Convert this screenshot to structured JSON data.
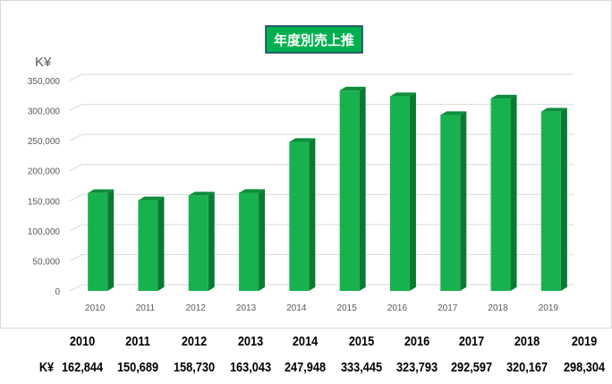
{
  "chart_data": {
    "type": "bar",
    "title": "年度別売上推",
    "ylabel": "K¥",
    "xlabel": "",
    "categories": [
      "2010",
      "2011",
      "2012",
      "2013",
      "2014",
      "2015",
      "2016",
      "2017",
      "2018",
      "2019"
    ],
    "values": [
      162844,
      150689,
      158730,
      163043,
      247948,
      333445,
      323793,
      292597,
      320167,
      298304
    ],
    "ylim": [
      0,
      350000
    ],
    "yticks": [
      0,
      50000,
      100000,
      150000,
      200000,
      250000,
      300000,
      350000
    ],
    "ytick_labels": [
      "0",
      "50,000",
      "100,000",
      "150,000",
      "200,000",
      "250,000",
      "300,000",
      "350,000"
    ],
    "grid": true,
    "legend": "none",
    "bar_style": "3d",
    "colors": {
      "bar_front": "#17b24e",
      "bar_side": "#0a7a32",
      "bar_top": "#0e8e3c",
      "title_bg": "#00b050",
      "title_border": "#1f3864",
      "title_text": "#ffffff",
      "grid": "#d9d9d9",
      "axis_text": "#595959"
    }
  },
  "table": {
    "row_label": "K¥",
    "years": [
      "2010",
      "2011",
      "2012",
      "2013",
      "2014",
      "2015",
      "2016",
      "2017",
      "2018",
      "2019"
    ],
    "values": [
      "162,844",
      "150,689",
      "158,730",
      "163,043",
      "247,948",
      "333,445",
      "323,793",
      "292,597",
      "320,167",
      "298,304"
    ]
  }
}
